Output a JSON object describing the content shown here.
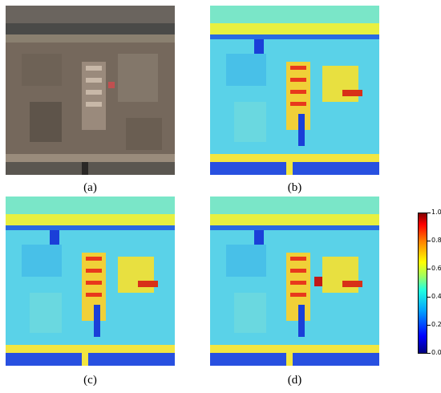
{
  "panels": [
    {
      "id": "a",
      "caption": "(a)",
      "kind": "rgb"
    },
    {
      "id": "b",
      "caption": "(b)",
      "kind": "heatmap"
    },
    {
      "id": "c",
      "caption": "(c)",
      "kind": "heatmap"
    },
    {
      "id": "d",
      "caption": "(d)",
      "kind": "heatmap"
    }
  ],
  "colorbar": {
    "ticks": [
      "0.0",
      "0.2",
      "0.4",
      "0.6",
      "0.8",
      "1.0"
    ],
    "min": 0.0,
    "max": 1.0,
    "colormap": [
      "#00007f",
      "#0000ff",
      "#00a0ff",
      "#20ffe0",
      "#a0ff60",
      "#ffff00",
      "#ff8000",
      "#ff0000",
      "#7f0000"
    ]
  },
  "colors": {
    "rgb_ground": "#7a6a5c",
    "heat_base": "#5ad2e8",
    "heat_blue": "#1a3fd8",
    "heat_yellow": "#f2e640",
    "heat_red": "#e8381c"
  }
}
